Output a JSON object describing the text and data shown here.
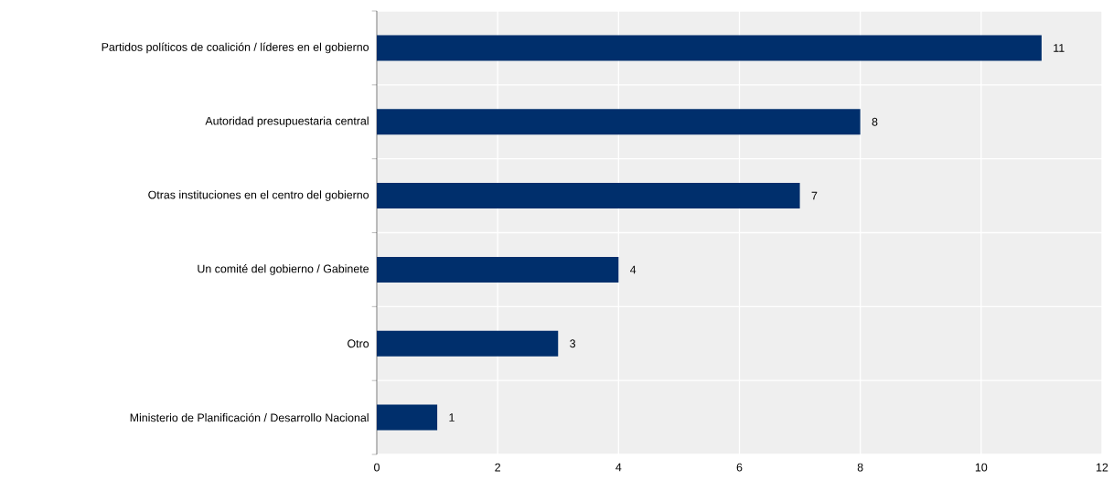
{
  "chart_data": {
    "type": "bar",
    "orientation": "horizontal",
    "categories": [
      "Partidos políticos de coalición / líderes en el gobierno",
      "Autoridad presupuestaria central",
      "Otras instituciones en el centro del gobierno",
      "Un comité del gobierno / Gabinete",
      "Otro",
      "Ministerio de Planificación / Desarrollo Nacional"
    ],
    "values": [
      11,
      8,
      7,
      4,
      3,
      1
    ],
    "color": "#002f6c",
    "data_labels": true,
    "grid": true,
    "xlim": [
      0,
      12
    ],
    "xticks": [
      0,
      2,
      4,
      6,
      8,
      10,
      12
    ]
  }
}
